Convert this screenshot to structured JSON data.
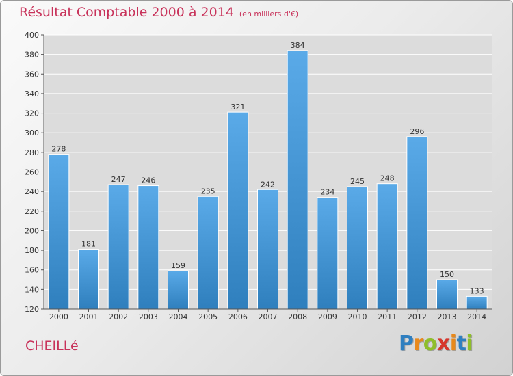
{
  "title": {
    "main": "Résultat Comptable 2000 à 2014",
    "unit": "(en milliers d'€)"
  },
  "commune": "CHEILLé",
  "logo": {
    "text": "Proxiti",
    "letters": [
      "P",
      "r",
      "o",
      "x",
      "i",
      "t",
      "i"
    ],
    "colors": [
      "#2f7fc0",
      "#e8891c",
      "#8fbe2a",
      "#d6362c",
      "#e8891c",
      "#2f7fc0",
      "#8fbe2a"
    ]
  },
  "colors": {
    "bar_dark": "#2f7fbd",
    "bar_light": "#5aaae8",
    "title": "#c8325a",
    "grid": "#ffffff"
  },
  "chart_data": {
    "type": "bar",
    "title": "Résultat Comptable 2000 à 2014",
    "subtitle": "(en milliers d'€)",
    "xlabel": "",
    "ylabel": "",
    "categories": [
      "2000",
      "2001",
      "2002",
      "2003",
      "2004",
      "2005",
      "2006",
      "2007",
      "2008",
      "2009",
      "2010",
      "2011",
      "2012",
      "2013",
      "2014"
    ],
    "values": [
      278,
      181,
      247,
      246,
      159,
      235,
      321,
      242,
      384,
      234,
      245,
      248,
      296,
      150,
      133
    ],
    "ylim": [
      120,
      400
    ],
    "yticks": [
      120,
      140,
      160,
      180,
      200,
      220,
      240,
      260,
      280,
      300,
      320,
      340,
      360,
      380,
      400
    ],
    "grid": true,
    "data_labels": true
  }
}
